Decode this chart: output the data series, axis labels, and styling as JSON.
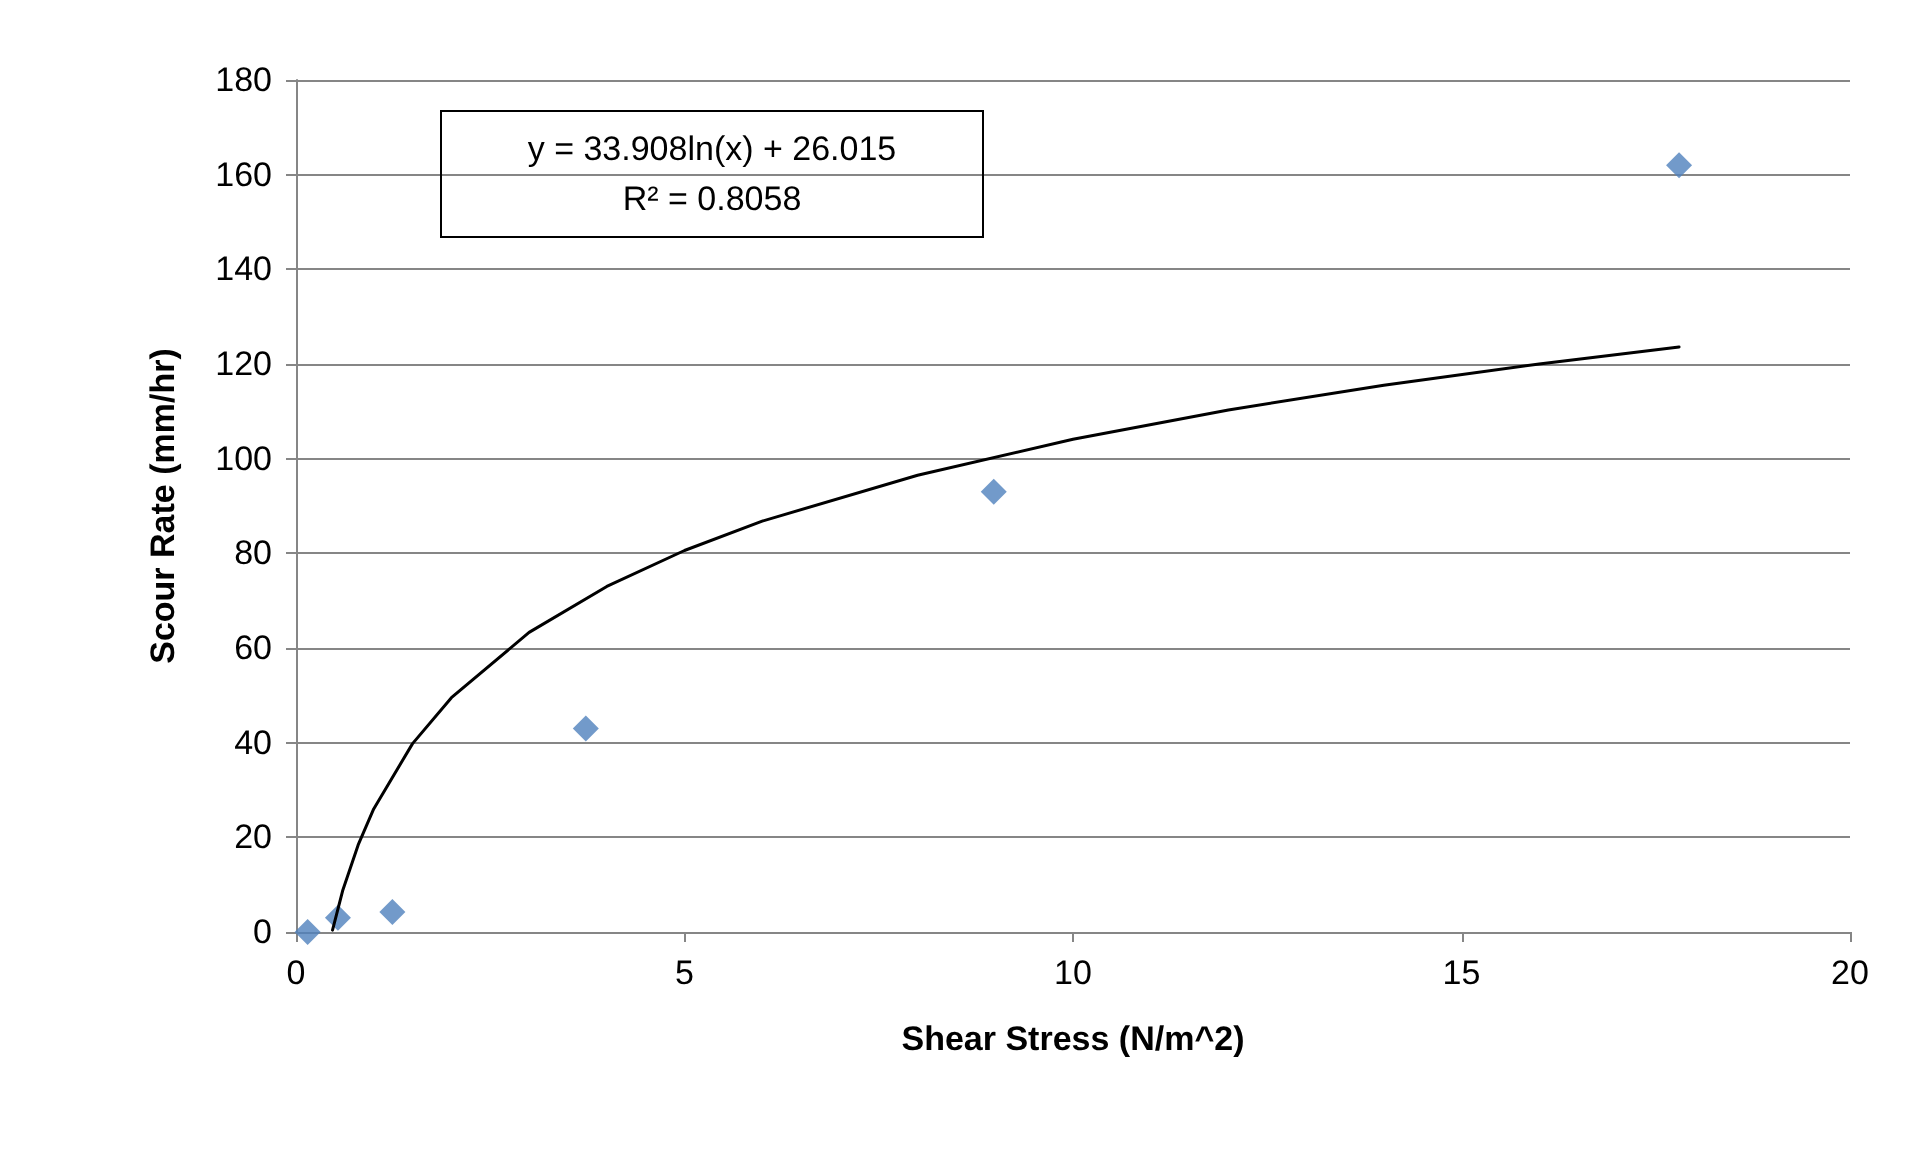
{
  "chart_data": {
    "type": "scatter",
    "xlabel": "Shear Stress (N/m^2)",
    "ylabel": "Scour Rate (mm/hr)",
    "annotations": [
      "y = 33.908ln(x) + 26.015",
      "R² = 0.8058"
    ],
    "series": [
      {
        "color": "#4f81bd",
        "marker": "diamond",
        "x": [
          0.15,
          0.54,
          1.24,
          3.73,
          8.98,
          17.8
        ],
        "values": [
          0,
          3,
          4.2,
          43,
          93,
          162
        ]
      },
      {
        "type": "line",
        "color": "#000000",
        "marker": "none",
        "line_style": "solid",
        "x": [
          0.47,
          0.6,
          0.8,
          1,
          1.5,
          2,
          3,
          4,
          5,
          6,
          8,
          10,
          12,
          14,
          16,
          17.8
        ],
        "values": [
          0.4,
          8.7,
          18.4,
          26,
          39.8,
          49.5,
          63.3,
          73,
          80.6,
          86.8,
          96.5,
          104.1,
          110.3,
          115.5,
          120,
          123.6
        ]
      }
    ],
    "xlim": [
      0,
      20
    ],
    "xticks": [
      0,
      5,
      10,
      15,
      20
    ],
    "ylim": [
      0,
      180
    ],
    "yticks": [
      0,
      20,
      40,
      60,
      80,
      100,
      120,
      140,
      160,
      180
    ],
    "grid": "y"
  }
}
